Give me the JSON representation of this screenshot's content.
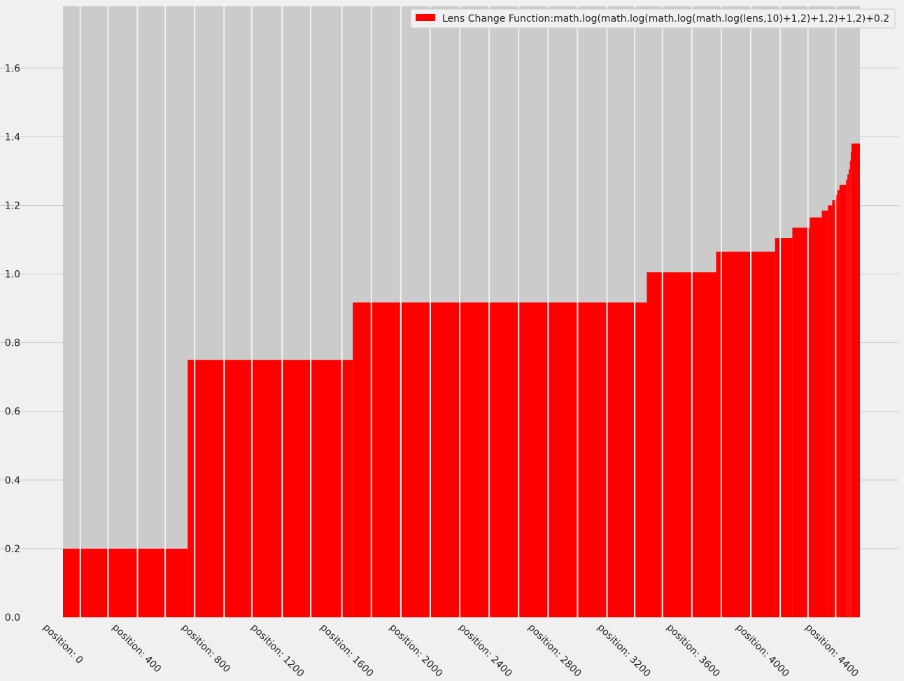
{
  "chart_data": {
    "type": "area",
    "title": "",
    "xlabel": "",
    "ylabel": "",
    "xlim": [
      0,
      4600
    ],
    "ylim": [
      0,
      1.78
    ],
    "y_ticks": [
      "0.0",
      "0.2",
      "0.4",
      "0.6",
      "0.8",
      "1.0",
      "1.2",
      "1.4",
      "1.6"
    ],
    "y_tick_values": [
      0,
      0.2,
      0.4,
      0.6,
      0.8,
      1.0,
      1.2,
      1.4,
      1.6
    ],
    "x_tick_labels": [
      "position: 0",
      "position: 400",
      "position: 800",
      "position: 1200",
      "position: 1600",
      "position: 2000",
      "position: 2400",
      "position: 2800",
      "position: 3200",
      "position: 3600",
      "position: 4000",
      "position: 4400"
    ],
    "x_tick_values": [
      0,
      400,
      800,
      1200,
      1600,
      2000,
      2400,
      2800,
      3200,
      3600,
      4000,
      4400
    ],
    "grid": "horizontal",
    "legend_position": "top-right",
    "series": [
      {
        "name": "Lens Change Function:math.log(math.log(math.log(math.log(lens,10)+1,2)+1,2)+1,2)+0.2",
        "color": "#ff0000",
        "x_end": 4600,
        "steps": [
          [
            0,
            0.2
          ],
          [
            720,
            0.75
          ],
          [
            1673,
            0.917
          ],
          [
            3370,
            1.005
          ],
          [
            3770,
            1.065
          ],
          [
            4110,
            1.105
          ],
          [
            4210,
            1.135
          ],
          [
            4310,
            1.165
          ],
          [
            4380,
            1.185
          ],
          [
            4415,
            1.2
          ],
          [
            4440,
            1.215
          ],
          [
            4455,
            1.23
          ],
          [
            4470,
            1.245
          ],
          [
            4482,
            1.26
          ],
          [
            4520,
            1.275
          ],
          [
            4528,
            1.29
          ],
          [
            4535,
            1.305
          ],
          [
            4542,
            1.33
          ],
          [
            4547,
            1.355
          ],
          [
            4551,
            1.38
          ]
        ]
      }
    ],
    "separator_x": [
      100,
      260,
      430,
      590,
      760,
      930,
      1090,
      1265,
      1430,
      1610,
      1780,
      1950,
      2120,
      2290,
      2460,
      2630,
      2800,
      2970,
      3140,
      3300,
      3460,
      3630,
      3800,
      3970,
      4140,
      4300,
      4460
    ],
    "colors": {
      "plot_background": "#cbcbcb",
      "page_background": "#f0f0f0",
      "grid": "#cbcbcb",
      "separator": "#f0f0f0"
    }
  }
}
